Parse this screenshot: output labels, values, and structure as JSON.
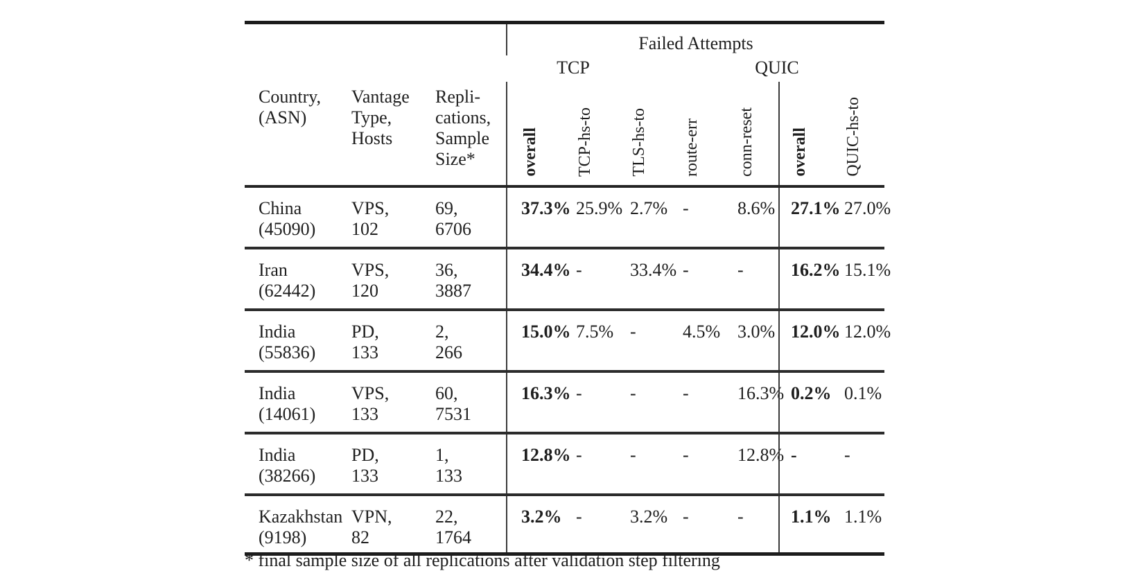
{
  "colors": {
    "text": "#1e1e1e",
    "rule_heavy": "#1c1c1c",
    "rule_mid": "#2b2b2b",
    "rule_vertical": "#3a3a3a",
    "background": "#ffffff"
  },
  "table": {
    "header": {
      "spanner": "Failed Attempts",
      "tcp_group": "TCP",
      "quic_group": "QUIC",
      "country": [
        "Country,",
        "(ASN)"
      ],
      "vantage": [
        "Vantage",
        "Type,",
        "Hosts"
      ],
      "replications": [
        "Repli-",
        "cations,",
        "Sample",
        "Size*"
      ],
      "tcp_cols": [
        "overall",
        "TCP-hs-to",
        "TLS-hs-to",
        "route-err",
        "conn-reset"
      ],
      "quic_cols": [
        "overall",
        "QUIC-hs-to"
      ]
    },
    "rows": [
      {
        "country": [
          "China",
          "(45090)"
        ],
        "vantage": [
          "VPS,",
          "102"
        ],
        "replications": [
          "69,",
          "6706"
        ],
        "tcp": [
          "37.3%",
          "25.9%",
          "2.7%",
          "-",
          "8.6%"
        ],
        "quic": [
          "27.1%",
          "27.0%"
        ]
      },
      {
        "country": [
          "Iran",
          "(62442)"
        ],
        "vantage": [
          "VPS,",
          "120"
        ],
        "replications": [
          "36,",
          "3887"
        ],
        "tcp": [
          "34.4%",
          "-",
          "33.4%",
          "-",
          "-"
        ],
        "quic": [
          "16.2%",
          "15.1%"
        ]
      },
      {
        "country": [
          "India",
          "(55836)"
        ],
        "vantage": [
          "PD,",
          "133"
        ],
        "replications": [
          "2,",
          "266"
        ],
        "tcp": [
          "15.0%",
          "7.5%",
          "-",
          "4.5%",
          "3.0%"
        ],
        "quic": [
          "12.0%",
          "12.0%"
        ]
      },
      {
        "country": [
          "India",
          "(14061)"
        ],
        "vantage": [
          "VPS,",
          "133"
        ],
        "replications": [
          "60,",
          "7531"
        ],
        "tcp": [
          "16.3%",
          "-",
          "-",
          "-",
          "16.3%"
        ],
        "quic": [
          "0.2%",
          "0.1%"
        ]
      },
      {
        "country": [
          "India",
          "(38266)"
        ],
        "vantage": [
          "PD,",
          "133"
        ],
        "replications": [
          "1,",
          "133"
        ],
        "tcp": [
          "12.8%",
          "-",
          "-",
          "-",
          "12.8%"
        ],
        "quic": [
          "-",
          "-"
        ]
      },
      {
        "country": [
          "Kazakhstan",
          "(9198)"
        ],
        "vantage": [
          "VPN,",
          "82"
        ],
        "replications": [
          "22,",
          "1764"
        ],
        "tcp": [
          "3.2%",
          "-",
          "3.2%",
          "-",
          "-"
        ],
        "quic": [
          "1.1%",
          "1.1%"
        ]
      }
    ],
    "footnote": "* final sample size of all replications after validation step filtering"
  }
}
